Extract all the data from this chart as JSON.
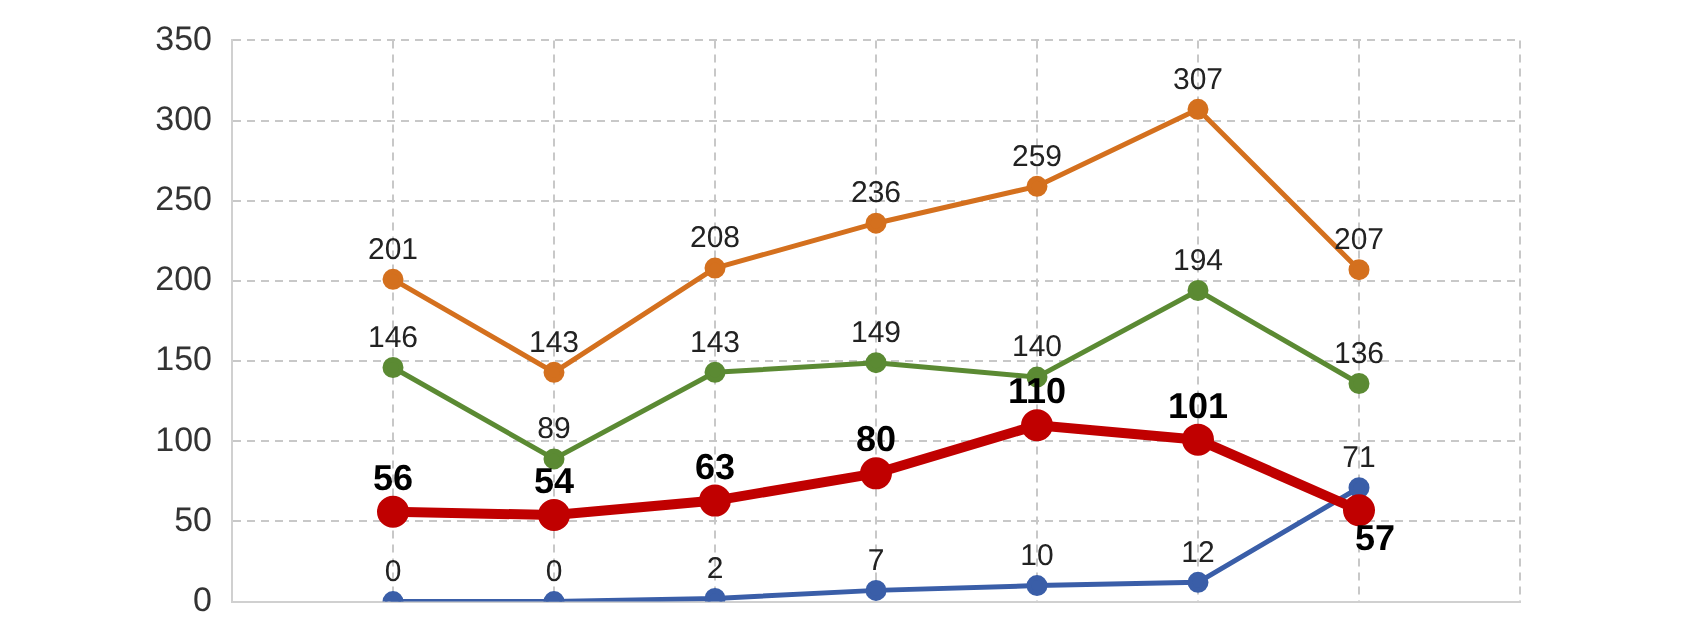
{
  "chart_data": {
    "type": "line",
    "categories": [
      null,
      null,
      null,
      null,
      null,
      null,
      null,
      null,
      null
    ],
    "series": [
      {
        "color": "#d4701e",
        "values": [
          null,
          201,
          143,
          208,
          236,
          259,
          307,
          207,
          null
        ]
      },
      {
        "color": "#5b8a33",
        "values": [
          null,
          146,
          89,
          143,
          149,
          140,
          194,
          136,
          null
        ]
      },
      {
        "color": "#c00000",
        "values": [
          null,
          56,
          54,
          63,
          80,
          110,
          101,
          57,
          null
        ]
      },
      {
        "color": "#3a5ea8",
        "values": [
          null,
          0,
          0,
          2,
          7,
          10,
          12,
          71,
          null
        ]
      }
    ],
    "ylim": [
      0,
      350
    ],
    "yticks": [
      0,
      50,
      100,
      150,
      200,
      250,
      300,
      350
    ],
    "grid": true,
    "legend": false,
    "marker": "circle",
    "line_style": "solid",
    "data_labels": true,
    "tick_labels": "y"
  }
}
